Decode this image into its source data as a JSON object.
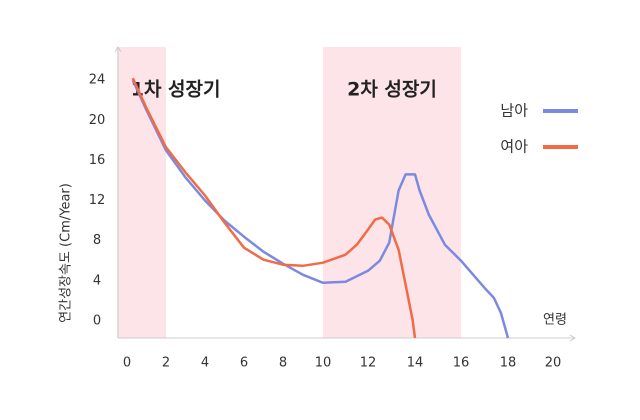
{
  "chart_data": {
    "type": "line",
    "x_label": "연령",
    "y_label": "연간성장속도 (Cm/Year)",
    "xlim": [
      -0.5,
      21
    ],
    "xticks": [
      0,
      2,
      4,
      6,
      8,
      10,
      12,
      14,
      16,
      18,
      20
    ],
    "ylim": [
      -1.7,
      27.3
    ],
    "yticks": [
      0,
      4,
      8,
      12,
      16,
      20,
      24
    ],
    "regions": [
      {
        "label": "1차 성장기",
        "start": -0.5,
        "end": 2,
        "color": "#fde4e8"
      },
      {
        "label": "2차 성장기",
        "start": 10,
        "end": 16,
        "color": "#fde4e8"
      }
    ],
    "series": [
      {
        "name": "남아",
        "color": "#7b8ae0",
        "x": [
          0.3,
          1,
          2,
          3,
          4,
          5,
          6,
          7,
          8,
          9,
          10,
          11,
          12,
          12.5,
          12.9,
          13.3,
          13.6,
          14,
          14.2,
          14.6,
          15.3,
          16,
          17,
          17.4,
          17.7,
          18
        ],
        "values": [
          24,
          21,
          17,
          14.3,
          12,
          10,
          8.4,
          6.9,
          5.7,
          4.6,
          3.8,
          3.9,
          5,
          6,
          7.8,
          13,
          14.6,
          14.6,
          13,
          10.6,
          7.6,
          6,
          3.3,
          2.3,
          0.8,
          -1.7
        ]
      },
      {
        "name": "여아",
        "color": "#f26b45",
        "x": [
          0.3,
          1,
          2,
          3,
          4,
          5,
          6,
          7,
          8,
          9,
          10,
          11,
          11.5,
          12,
          12.3,
          12.6,
          12.9,
          13.3,
          13.6,
          13.9,
          14
        ],
        "values": [
          24.2,
          21.2,
          17.3,
          14.8,
          12.5,
          9.8,
          7.3,
          6.1,
          5.6,
          5.5,
          5.8,
          6.6,
          7.6,
          9.1,
          10.1,
          10.3,
          9.6,
          7.1,
          3.6,
          0.1,
          -1.7
        ]
      }
    ]
  }
}
